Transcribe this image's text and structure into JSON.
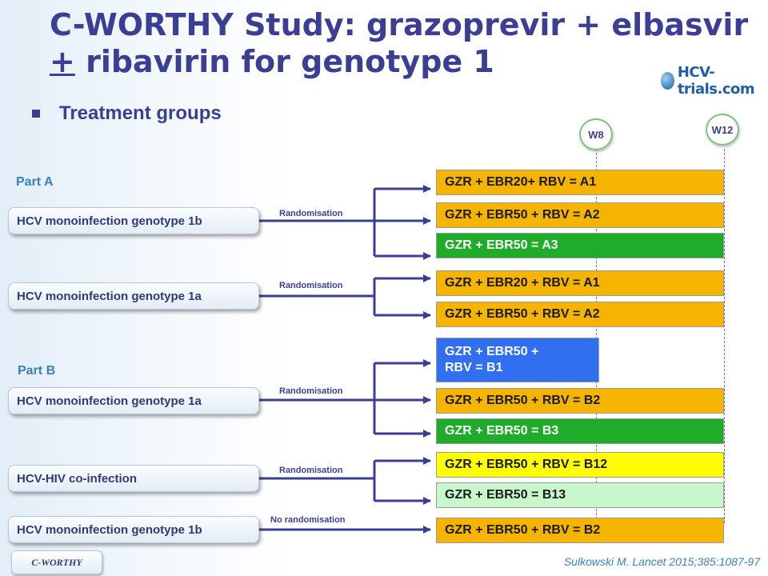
{
  "title": {
    "line1": "C-WORTHY Study: grazoprevir + elbasvir",
    "line2_pm": "+",
    "line2_rest": " ribavirin for genotype 1"
  },
  "logo": {
    "text": "HCV-trials.com"
  },
  "section": {
    "heading": "Treatment groups"
  },
  "weeks": {
    "w8": "W8",
    "w12": "W12"
  },
  "parts": {
    "a": "Part A",
    "b": "Part B"
  },
  "populations": [
    "HCV monoinfection genotype 1b",
    "HCV monoinfection genotype 1a",
    "HCV monoinfection genotype 1a",
    "HCV-HIV co-infection",
    "HCV monoinfection genotype 1b"
  ],
  "randomisation_labels": [
    "Randomisation",
    "Randomisation",
    "Randomisation",
    "Randomisation",
    "No randomisation"
  ],
  "arms": [
    {
      "label": "GZR + EBR20+ RBV = A1",
      "color": "#f5b400"
    },
    {
      "label": "GZR + EBR50 + RBV = A2",
      "color": "#f5b400"
    },
    {
      "label": "GZR + EBR50 = A3",
      "color": "#1fac2a"
    },
    {
      "label": "GZR + EBR20 + RBV = A1",
      "color": "#f5b400"
    },
    {
      "label": "GZR + EBR50 + RBV = A2",
      "color": "#f5b400"
    },
    {
      "label_line1": "GZR + EBR50 +",
      "label_line2": "RBV = B1",
      "color": "#2f6ff0"
    },
    {
      "label": "GZR + EBR50 + RBV = B2",
      "color": "#f5b400"
    },
    {
      "label": "GZR + EBR50 = B3",
      "color": "#1fac2a"
    },
    {
      "label": "GZR + EBR50 + RBV = B12",
      "color": "#ffff00"
    },
    {
      "label": "GZR + EBR50 = B13",
      "color": "#c9f7cc"
    },
    {
      "label": "GZR + EBR50 + RBV = B2",
      "color": "#f5b400"
    }
  ],
  "footer": {
    "tag": "C-WORTHY",
    "citation": "Sulkowski M. Lancet 2015;385:1087-97"
  },
  "colors": {
    "title": "#3a3f95",
    "connector": "#3a3f95",
    "accent_blue": "#3a7fc1"
  }
}
